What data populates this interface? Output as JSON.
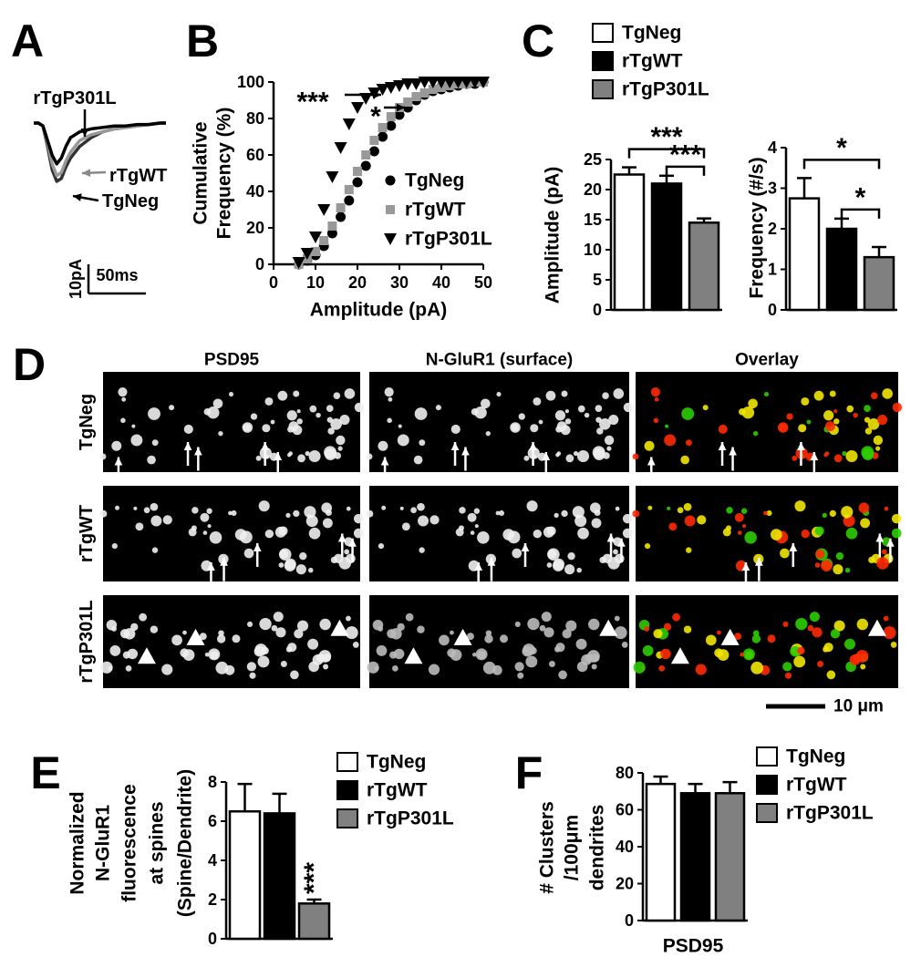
{
  "chart_data": [
    {
      "type": "line",
      "panel_label": "A",
      "x": [
        0,
        4,
        8,
        12,
        16,
        20,
        24,
        28,
        32,
        36,
        40,
        50,
        60,
        70,
        80,
        90,
        100,
        110,
        115
      ],
      "series": [
        {
          "name": "TgNeg",
          "color": "#333333",
          "values": [
            0,
            0,
            -1,
            -8,
            -16,
            -20,
            -19,
            -15,
            -12,
            -10,
            -8,
            -5,
            -3,
            -2,
            -1.5,
            -1,
            -0.5,
            0,
            0
          ]
        },
        {
          "name": "rTgWT",
          "color": "#999999",
          "values": [
            0,
            0,
            -1,
            -7,
            -14,
            -18,
            -17,
            -13,
            -10,
            -8,
            -6,
            -4,
            -3,
            -2,
            -1.5,
            -1,
            -0.5,
            0,
            0
          ]
        },
        {
          "name": "rTgP301L",
          "color": "#000000",
          "values": [
            0,
            0,
            -1,
            -6,
            -11,
            -14,
            -12,
            -8,
            -5,
            -4,
            -3,
            -2,
            -1.5,
            -1,
            -1,
            -0.5,
            -0.5,
            0,
            0
          ]
        }
      ],
      "xlim": [
        0,
        115
      ],
      "ylim": [
        -22,
        2
      ],
      "scalebars": [
        {
          "value": 10,
          "label": "10pA",
          "axis": "y"
        },
        {
          "value": 50,
          "label": "50ms",
          "axis": "x"
        }
      ]
    },
    {
      "type": "line",
      "panel_label": "B",
      "xlabel": "Amplitude (pA)",
      "ylabel": [
        "Cumulative",
        "Frequency (%)"
      ],
      "x": [
        6,
        8,
        10,
        12,
        14,
        16,
        18,
        20,
        22,
        24,
        26,
        28,
        30,
        32,
        34,
        36,
        38,
        40,
        42,
        44,
        46,
        48,
        50
      ],
      "series": [
        {
          "name": "TgNeg",
          "color": "#000000",
          "marker": "circle",
          "values": [
            0,
            2,
            5,
            10,
            17,
            26,
            35,
            45,
            54,
            62,
            70,
            76,
            82,
            86,
            90,
            93,
            95,
            96,
            97,
            98,
            99,
            99,
            100
          ]
        },
        {
          "name": "rTgWT",
          "color": "#999999",
          "marker": "square",
          "values": [
            0,
            3,
            7,
            13,
            21,
            31,
            41,
            51,
            60,
            68,
            75,
            81,
            86,
            89,
            92,
            94,
            96,
            97,
            98,
            99,
            99,
            100,
            100
          ]
        },
        {
          "name": "rTgP301L",
          "color": "#000000",
          "marker": "triangle-down",
          "values": [
            1,
            6,
            15,
            30,
            48,
            64,
            77,
            86,
            91,
            94,
            96,
            97,
            98,
            99,
            99,
            100,
            100,
            100,
            100,
            100,
            100,
            100,
            100
          ]
        }
      ],
      "xlim": [
        0,
        50
      ],
      "ylim": [
        0,
        100
      ],
      "xticks": [
        0,
        10,
        20,
        30,
        40,
        50
      ],
      "yticks": [
        0,
        20,
        40,
        60,
        80,
        100
      ],
      "legend": "lower right",
      "annotations": [
        "***",
        "*"
      ]
    },
    {
      "type": "bar",
      "panel_label": "C",
      "categories": [
        "TgNeg",
        "rTgWT",
        "rTgP301L"
      ],
      "colors": [
        "#ffffff",
        "#000000",
        "#808080"
      ],
      "legend": "top",
      "panels": [
        {
          "ylabel": "Amplitude (pA)",
          "values": [
            22.5,
            21,
            14.5
          ],
          "errors": [
            1.2,
            1.3,
            0.7
          ],
          "ylim": [
            0,
            25
          ],
          "yticks": [
            0,
            5,
            10,
            15,
            20,
            25
          ],
          "significance": [
            {
              "text": "***",
              "between": [
                "TgNeg",
                "rTgP301L"
              ]
            },
            {
              "text": "***",
              "between": [
                "rTgWT",
                "rTgP301L"
              ]
            }
          ]
        },
        {
          "ylabel": "Frequency (#/s)",
          "values": [
            2.75,
            2.0,
            1.3
          ],
          "errors": [
            0.5,
            0.25,
            0.25
          ],
          "ylim": [
            0,
            4
          ],
          "yticks": [
            0,
            1,
            2,
            3,
            4
          ],
          "significance": [
            {
              "text": "*",
              "between": [
                "TgNeg",
                "rTgP301L"
              ]
            },
            {
              "text": "*",
              "between": [
                "rTgWT",
                "rTgP301L"
              ]
            }
          ]
        }
      ]
    },
    {
      "type": "image",
      "panel_label": "D",
      "columns": [
        "PSD95",
        "N-GluR1 (surface)",
        "Overlay"
      ],
      "rows": [
        "TgNeg",
        "rTgWT",
        "rTgP301L"
      ],
      "scalebar": "10 μm"
    },
    {
      "type": "bar",
      "panel_label": "E",
      "ylabel": [
        "Normalized",
        "N-GluR1",
        "fluorescence",
        "at spines",
        "(Spine/Dendrite)"
      ],
      "categories": [
        "TgNeg",
        "rTgWT",
        "rTgP301L"
      ],
      "colors": [
        "#ffffff",
        "#000000",
        "#808080"
      ],
      "legend": "right",
      "values": [
        6.5,
        6.4,
        1.8
      ],
      "errors": [
        1.4,
        1.0,
        0.2
      ],
      "ylim": [
        0,
        8
      ],
      "yticks": [
        0,
        2,
        4,
        6,
        8
      ],
      "significance": [
        {
          "text": "***",
          "over": "rTgP301L"
        }
      ]
    },
    {
      "type": "bar",
      "panel_label": "F",
      "ylabel": [
        "# Clusters",
        "/100μm",
        "dendrites"
      ],
      "xlabel": "PSD95",
      "categories": [
        "TgNeg",
        "rTgWT",
        "rTgP301L"
      ],
      "colors": [
        "#ffffff",
        "#000000",
        "#808080"
      ],
      "legend": "right",
      "values": [
        74,
        69,
        69
      ],
      "errors": [
        4,
        5,
        6
      ],
      "ylim": [
        0,
        80
      ],
      "yticks": [
        0,
        20,
        40,
        60,
        80
      ]
    }
  ]
}
